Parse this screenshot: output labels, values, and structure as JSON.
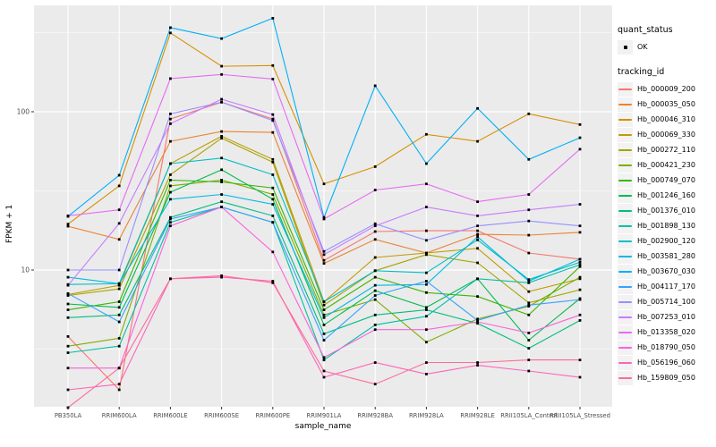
{
  "figure": {
    "background": "#FFFFFF",
    "panel_background": "#EBEBEB",
    "gridline_color": "#FFFFFF",
    "axis_text_color": "#4D4D4D",
    "tick_color": "#333333",
    "point_color": "#000000"
  },
  "legend": {
    "quant_status": {
      "title": "quant_status",
      "items": [
        {
          "label": "OK",
          "symbol": "point",
          "color": "#000000"
        }
      ]
    },
    "tracking_id": {
      "title": "tracking_id"
    }
  },
  "chart_data": {
    "type": "line",
    "title": "",
    "xlabel": "sample_name",
    "ylabel": "FPKM + 1",
    "y_scale": "log10",
    "y_ticks": [
      10,
      100
    ],
    "y_minor_ticks": [
      3.162,
      31.62,
      316.2
    ],
    "ylim": [
      1.35,
      470
    ],
    "grid": true,
    "legend_position": "right",
    "categories": [
      "PB350LA",
      "RRIM600LA",
      "RRIM600LE",
      "RRIM600SE",
      "RRIM600PE",
      "RRIM901LA",
      "RRIM928BA",
      "RRIM928LA",
      "RRIM928LE",
      "RRII105LA_Control",
      "RRII105LA_Stressed"
    ],
    "series": [
      {
        "name": "Hb_000009_200",
        "color": "#F8766D",
        "values": [
          3.8,
          1.75,
          90,
          115,
          90,
          11.5,
          17.5,
          17.7,
          17.7,
          12.8,
          11.7
        ]
      },
      {
        "name": "Hb_000035_050",
        "color": "#EA8331",
        "values": [
          18.9,
          15.6,
          65,
          75,
          74,
          11,
          15.6,
          12.8,
          16.8,
          16.6,
          17.3
        ]
      },
      {
        "name": "Hb_000046_310",
        "color": "#D89000",
        "values": [
          19.5,
          34,
          315,
          194,
          196,
          35,
          45,
          72,
          65,
          97,
          83
        ]
      },
      {
        "name": "Hb_000069_330",
        "color": "#C09B00",
        "values": [
          7.0,
          8.0,
          47,
          70,
          50,
          6.3,
          12,
          12.8,
          13.7,
          7.3,
          8.8
        ]
      },
      {
        "name": "Hb_000272_110",
        "color": "#A3A500",
        "values": [
          6.9,
          7.6,
          40,
          68,
          48,
          6.0,
          9.9,
          12.5,
          11.1,
          6.2,
          7.5
        ]
      },
      {
        "name": "Hb_000421_230",
        "color": "#7CAE00",
        "values": [
          3.3,
          3.7,
          34,
          37,
          30,
          5.2,
          6.5,
          3.5,
          4.9,
          5.9,
          9.0
        ]
      },
      {
        "name": "Hb_000749_070",
        "color": "#39B600",
        "values": [
          5.6,
          6.3,
          37,
          36,
          33,
          5.6,
          9.0,
          7.2,
          6.8,
          5.2,
          10.5
        ]
      },
      {
        "name": "Hb_001246_160",
        "color": "#00BB4E",
        "values": [
          6.1,
          5.8,
          31,
          43,
          28,
          4.5,
          7.4,
          5.8,
          8.8,
          3.6,
          6.6
        ]
      },
      {
        "name": "Hb_001376_010",
        "color": "#00BF7D",
        "values": [
          5.0,
          5.2,
          21.5,
          27,
          22,
          3.95,
          5.2,
          5.6,
          4.6,
          3.2,
          4.8
        ]
      },
      {
        "name": "Hb_001898_130",
        "color": "#00C1A3",
        "values": [
          3.0,
          3.3,
          20,
          25,
          20,
          2.7,
          4.5,
          5.1,
          8.8,
          8.3,
          10.8
        ]
      },
      {
        "name": "Hb_002900_120",
        "color": "#00BFC4",
        "values": [
          8.1,
          8.2,
          47,
          51,
          40,
          6.3,
          9.9,
          9.6,
          15.5,
          8.7,
          11.2
        ]
      },
      {
        "name": "Hb_003581_280",
        "color": "#00BAE0",
        "values": [
          9.0,
          8.2,
          28,
          30,
          26,
          5.0,
          8.0,
          8.1,
          16.2,
          8.5,
          11.7
        ]
      },
      {
        "name": "Hb_003670_030",
        "color": "#00B0F6",
        "values": [
          21.8,
          39.7,
          340,
          290,
          390,
          21.5,
          146,
          47,
          105,
          50,
          68.5
        ]
      },
      {
        "name": "Hb_004117_170",
        "color": "#35A2FF",
        "values": [
          7.1,
          4.7,
          21,
          25,
          20,
          3.6,
          6.9,
          8.5,
          4.8,
          6.0,
          6.5
        ]
      },
      {
        "name": "Hb_005714_100",
        "color": "#9590FF",
        "values": [
          10,
          10,
          97,
          115,
          88,
          13.1,
          19.6,
          15.4,
          19,
          20.4,
          19
        ]
      },
      {
        "name": "Hb_007253_010",
        "color": "#C77CFF",
        "values": [
          8.0,
          19.7,
          84,
          120,
          96,
          12.5,
          19,
          25,
          22,
          24,
          26
        ]
      },
      {
        "name": "Hb_013358_020",
        "color": "#E76BF3",
        "values": [
          22,
          24,
          162,
          172,
          161,
          21,
          32,
          35,
          27,
          30,
          58
        ]
      },
      {
        "name": "Hb_018790_050",
        "color": "#FA62DB",
        "values": [
          2.4,
          2.4,
          19,
          25,
          13,
          2.8,
          4.2,
          4.2,
          4.7,
          4.0,
          5.2
        ]
      },
      {
        "name": "Hb_056196_060",
        "color": "#FF62BC",
        "values": [
          1.75,
          1.9,
          8.8,
          9.0,
          8.5,
          2.1,
          2.6,
          2.2,
          2.5,
          2.3,
          2.1
        ]
      },
      {
        "name": "Hb_159809_050",
        "color": "#FF6A98",
        "values": [
          1.35,
          2.4,
          8.8,
          9.2,
          8.3,
          2.3,
          1.9,
          2.6,
          2.6,
          2.7,
          2.7
        ]
      }
    ]
  }
}
